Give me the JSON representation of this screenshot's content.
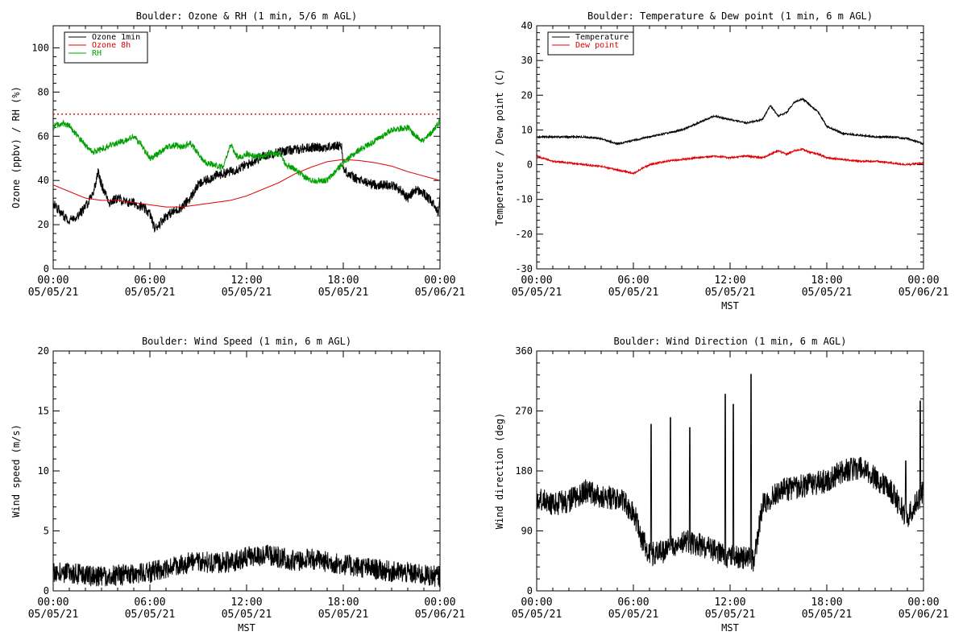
{
  "chart_data": [
    {
      "type": "line",
      "title": "Boulder: Ozone & RH (1 min, 5/6 m AGL)",
      "ylabel": "Ozone (ppbv) / RH (%)",
      "xlabel": "",
      "xlim": [
        0,
        24
      ],
      "ylim": [
        0,
        110
      ],
      "yticks": [
        0,
        20,
        40,
        60,
        80,
        100
      ],
      "x_tick_labels": [
        [
          "00:00",
          "05/05/21"
        ],
        [
          "06:00",
          "05/05/21"
        ],
        [
          "12:00",
          "05/05/21"
        ],
        [
          "18:00",
          "05/05/21"
        ],
        [
          "00:00",
          "05/06/21"
        ]
      ],
      "legend_position": "top-left",
      "reference_line": {
        "y": 70,
        "color": "#dd0000",
        "style": "dotted"
      },
      "series": [
        {
          "name": "Ozone 1min",
          "color": "#000000",
          "noise": 2.2,
          "x": [
            0,
            0.5,
            1,
            1.5,
            2,
            2.5,
            2.8,
            3,
            3.5,
            4,
            4.5,
            5,
            5.5,
            6,
            6.3,
            7,
            7.5,
            8,
            8.5,
            9,
            9.5,
            10,
            11,
            12,
            13,
            14,
            15,
            16,
            17,
            17.9,
            18,
            18.5,
            19,
            20,
            21,
            21.5,
            22,
            22.5,
            23,
            23.5,
            23.9,
            24
          ],
          "y": [
            30,
            25,
            22,
            24,
            28,
            35,
            44,
            38,
            30,
            32,
            30,
            30,
            28,
            25,
            18,
            24,
            26,
            28,
            32,
            38,
            40,
            42,
            44,
            47,
            51,
            53,
            54,
            55,
            55,
            56,
            45,
            42,
            40,
            38,
            38,
            36,
            32,
            36,
            34,
            30,
            26,
            34
          ]
        },
        {
          "name": "Ozone 8h",
          "color": "#dd0000",
          "noise": 0,
          "x": [
            0,
            1,
            2,
            3,
            4,
            5,
            6,
            7,
            8,
            9,
            10,
            11,
            12,
            13,
            14,
            15,
            16,
            17,
            18,
            19,
            20,
            21,
            22,
            23,
            24
          ],
          "y": [
            38,
            35,
            32,
            31,
            31,
            30,
            29,
            28,
            28,
            29,
            30,
            31,
            33,
            36,
            39,
            43,
            46,
            48.5,
            49.5,
            49,
            48,
            46.5,
            44,
            42,
            40
          ]
        },
        {
          "name": "RH",
          "color": "#00a000",
          "noise": 1.4,
          "x": [
            0,
            0.5,
            1,
            1.5,
            2,
            2.5,
            3,
            3.5,
            4,
            4.5,
            5,
            5.5,
            6,
            6.5,
            7,
            7.5,
            8,
            8.5,
            9,
            9.5,
            10,
            10.5,
            11,
            11.5,
            12,
            12.5,
            13,
            13.5,
            14,
            14.5,
            15,
            15.5,
            16,
            16.5,
            17,
            17.5,
            18,
            19,
            20,
            21,
            22,
            22.5,
            23,
            23.5,
            24
          ],
          "y": [
            64,
            66,
            65,
            60,
            56,
            53,
            54,
            56,
            57,
            58,
            60,
            56,
            50,
            52,
            55,
            56,
            55,
            57,
            52,
            48,
            47,
            46,
            56,
            50,
            52,
            51,
            51,
            52,
            52,
            47,
            45,
            42,
            40,
            40,
            40,
            44,
            48,
            54,
            58,
            63,
            64,
            60,
            58,
            62,
            67
          ]
        }
      ]
    },
    {
      "type": "line",
      "title": "Boulder: Temperature & Dew point (1 min, 6 m AGL)",
      "ylabel": "Temperature / Dew point (C)",
      "xlabel": "MST",
      "xlim": [
        0,
        24
      ],
      "ylim": [
        -30,
        40
      ],
      "yticks": [
        -30,
        -20,
        -10,
        0,
        10,
        20,
        30,
        40
      ],
      "x_tick_labels": [
        [
          "00:00",
          "05/05/21"
        ],
        [
          "06:00",
          "05/05/21"
        ],
        [
          "12:00",
          "05/05/21"
        ],
        [
          "18:00",
          "05/05/21"
        ],
        [
          "00:00",
          "05/06/21"
        ]
      ],
      "legend_position": "top-left",
      "series": [
        {
          "name": "Temperature",
          "color": "#000000",
          "noise": 0.25,
          "x": [
            0,
            1,
            2,
            3,
            4,
            5,
            6,
            7,
            8,
            9,
            10,
            11,
            12,
            13,
            14,
            14.5,
            15,
            15.5,
            16,
            16.5,
            17,
            17.5,
            18,
            19,
            20,
            21,
            22,
            23,
            24
          ],
          "y": [
            8,
            8,
            8,
            8,
            7.5,
            6,
            7,
            8,
            9,
            10,
            12,
            14,
            13,
            12,
            13,
            17,
            14,
            15,
            18,
            19,
            17,
            15,
            11,
            9,
            8.5,
            8,
            8,
            7.5,
            6
          ]
        },
        {
          "name": "Dew point",
          "color": "#dd0000",
          "noise": 0.25,
          "x": [
            0,
            1,
            2,
            3,
            4,
            5,
            6,
            7,
            8,
            9,
            10,
            11,
            12,
            13,
            14,
            15,
            15.5,
            16,
            16.5,
            17,
            17.5,
            18,
            19,
            20,
            21,
            22,
            23,
            24
          ],
          "y": [
            2.5,
            1,
            0.5,
            0,
            -0.5,
            -1.5,
            -2.5,
            0,
            1,
            1.5,
            2,
            2.5,
            2,
            2.5,
            2,
            4,
            3,
            4,
            4.5,
            3.5,
            3,
            2,
            1.5,
            1,
            1,
            0.5,
            0,
            0.5
          ]
        }
      ]
    },
    {
      "type": "line",
      "title": "Boulder: Wind Speed (1 min, 6 m AGL)",
      "ylabel": "Wind speed (m/s)",
      "xlabel": "MST",
      "xlim": [
        0,
        24
      ],
      "ylim": [
        0,
        20
      ],
      "yticks": [
        0,
        5,
        10,
        15,
        20
      ],
      "x_tick_labels": [
        [
          "00:00",
          "05/05/21"
        ],
        [
          "06:00",
          "05/05/21"
        ],
        [
          "12:00",
          "05/05/21"
        ],
        [
          "18:00",
          "05/05/21"
        ],
        [
          "00:00",
          "05/06/21"
        ]
      ],
      "series": [
        {
          "name": "",
          "color": "#000000",
          "noise": 0.9,
          "x": [
            0,
            1,
            2,
            3,
            4,
            5,
            6,
            7,
            8,
            9,
            10,
            11,
            12,
            13,
            14,
            15,
            16,
            17,
            18,
            19,
            20,
            21,
            22,
            23,
            24
          ],
          "y": [
            1.6,
            1.5,
            1.3,
            1.2,
            1.3,
            1.4,
            1.6,
            1.8,
            2.2,
            2.5,
            2.3,
            2.4,
            2.8,
            3.0,
            2.8,
            2.5,
            2.7,
            2.4,
            2.2,
            2.0,
            1.8,
            1.6,
            1.5,
            1.3,
            1.2
          ]
        }
      ]
    },
    {
      "type": "line",
      "title": "Boulder: Wind Direction (1 min, 6 m AGL)",
      "ylabel": "Wind direction (deg)",
      "xlabel": "MST",
      "xlim": [
        0,
        24
      ],
      "ylim": [
        0,
        360
      ],
      "yticks": [
        0,
        90,
        180,
        270,
        360
      ],
      "x_tick_labels": [
        [
          "00:00",
          "05/05/21"
        ],
        [
          "06:00",
          "05/05/21"
        ],
        [
          "12:00",
          "05/05/21"
        ],
        [
          "18:00",
          "05/05/21"
        ],
        [
          "00:00",
          "05/06/21"
        ]
      ],
      "series": [
        {
          "name": "",
          "color": "#000000",
          "noise": 18,
          "x": [
            0,
            1,
            2,
            3,
            4,
            5,
            6,
            6.5,
            7,
            8,
            9,
            10,
            11,
            12,
            13,
            13.5,
            14,
            15,
            16,
            17,
            18,
            19,
            20,
            21,
            22,
            23,
            24
          ],
          "y": [
            140,
            130,
            135,
            150,
            140,
            140,
            120,
            80,
            55,
            60,
            75,
            70,
            60,
            50,
            50,
            45,
            130,
            150,
            155,
            160,
            165,
            180,
            185,
            170,
            150,
            110,
            150
          ],
          "spikes": [
            [
              7.1,
              250
            ],
            [
              8.3,
              260
            ],
            [
              9.5,
              245
            ],
            [
              11.7,
              295
            ],
            [
              12.2,
              280
            ],
            [
              13.3,
              325
            ],
            [
              22.9,
              195
            ],
            [
              23.8,
              285
            ]
          ]
        }
      ]
    }
  ]
}
